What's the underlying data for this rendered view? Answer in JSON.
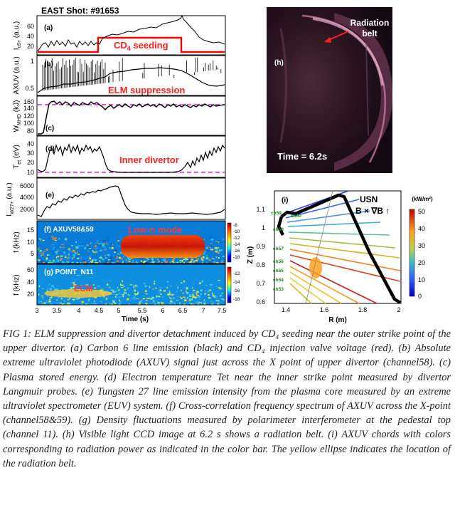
{
  "shot_title": "EAST Shot: #91653",
  "panels": {
    "a": {
      "label": "(a)",
      "ylabel": "I",
      "ylabel_sub": "c6+",
      "ylabel_unit": " (a.u.)",
      "yticks": [
        "60",
        "40",
        "20"
      ],
      "annotation": "CD",
      "annotation_sub": "4",
      "annotation_tail": " seeding"
    },
    "b": {
      "label": "(b)",
      "ylabel": "AXUV (a.u.)",
      "yticks": [
        "1",
        "0.5"
      ],
      "annotation": "ELM suppression"
    },
    "c": {
      "label": "(c)",
      "ylabel": "W",
      "ylabel_sub": "MHD",
      "ylabel_unit": " (kJ)",
      "yticks": [
        "160",
        "140",
        "120",
        "100",
        "80"
      ]
    },
    "d": {
      "label": "(d)",
      "ylabel": "T",
      "ylabel_sub": "et",
      "ylabel_unit": " (eV)",
      "yticks": [
        "40",
        "30",
        "20",
        "10"
      ],
      "annotation": "Inner divertor"
    },
    "e": {
      "label": "(e)",
      "ylabel": "I",
      "ylabel_sub": "W27+",
      "ylabel_unit": " (a.u.)",
      "yticks": [
        "6000",
        "4000",
        "2000"
      ]
    },
    "f": {
      "label": "(f) AXUV58&59",
      "ylabel": "f (kHz)",
      "yticks": [
        "15",
        "10",
        "5"
      ],
      "annotation": "Low-n mode",
      "colorbar": [
        "-8",
        "-10",
        "-12",
        "-14",
        "-16",
        "-18"
      ]
    },
    "g": {
      "label": "(g)  POINT_N11",
      "ylabel": "f (kHz)",
      "yticks": [
        "60",
        "40",
        "20"
      ],
      "annotation": "ECM",
      "colorbar": [
        "-12",
        "-14",
        "-16",
        "-18"
      ]
    }
  },
  "time_axis": {
    "label": "Time (s)",
    "ticks": [
      "3",
      "3.5",
      "4",
      "4.5",
      "5",
      "5.5",
      "6",
      "6.5",
      "7",
      "7.5"
    ]
  },
  "panel_h": {
    "label": "(h)",
    "callout": "Radiation\nbelt",
    "time": "Time = 6.2s"
  },
  "panel_i": {
    "label": "(i)",
    "usn": "USN",
    "bgrad": "B × ∇B ↑",
    "xlabel": "R (m)",
    "ylabel": "Z (m)",
    "xticks": [
      "1.4",
      "1.6",
      "1.8",
      "2"
    ],
    "yticks": [
      "1.1",
      "1",
      "0.9",
      "0.8",
      "0.7",
      "0.6"
    ],
    "channels": [
      "ch59",
      "ch60",
      "ch58",
      "ch57",
      "ch56",
      "ch55",
      "ch54",
      "ch53"
    ],
    "colorbar_unit": "(kW/m²)",
    "colorbar_ticks": [
      "50",
      "40",
      "30",
      "20",
      "10",
      "0"
    ]
  },
  "caption": "FIG 1: ELM suppression and divertor detachment induced by CD₄ seeding near the outer strike point of the upper divertor. (a) Carbon 6 line emission (black) and CD₄ injection valve voltage (red). (b) Absolute extreme ultraviolet photodiode (AXUV) signal just across the X point of upper divertor (channel58). (c) Plasma stored energy. (d) Electron temperature Tet near the inner strike point measured by divertor Langmuir probes. (e) Tungsten 27 line emission intensity from the plasma core measured by an extreme ultraviolet spectrometer (EUV) system. (f) Cross-correlation frequency spectrum of AXUV across the X-point (channel58&59). (g) Density fluctuations measured by polarimeter interferometer at the pedestal top (channel 11). (h) Visible light CCD image at 6.2 s shows a radiation belt. (i) AXUV chords with colors corresponding to radiation power as indicated in the color bar. The yellow ellipse indicates the location of the radiation belt.",
  "colors": {
    "trace": "#000000",
    "seeding": "#ff0000",
    "reference": "#e020e0",
    "annotation": "#ff2020"
  }
}
